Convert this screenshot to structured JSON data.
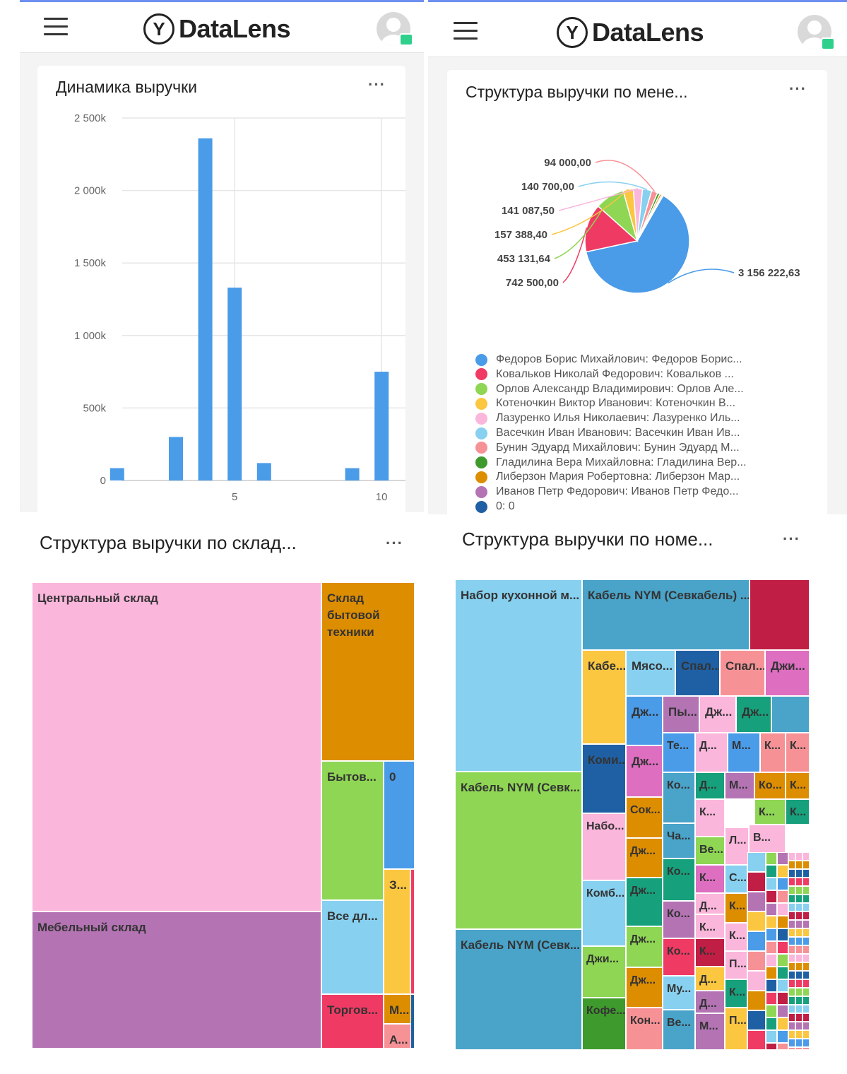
{
  "app": {
    "logo_mark": "Y",
    "logo_text": "DataLens",
    "menu_icon": "hamburger-icon",
    "avatar_icon": "user-avatar-icon"
  },
  "card_bar": {
    "title": "Динамика выручки",
    "more": "···",
    "chart_data": {
      "type": "bar",
      "x": [
        1,
        3,
        4,
        5,
        6,
        9,
        10
      ],
      "values": [
        85000,
        300000,
        2360000,
        1330000,
        120000,
        85000,
        750000
      ],
      "ylim": [
        0,
        2500000
      ],
      "yticks": [
        "0",
        "500k",
        "1 000k",
        "1 500k",
        "2 000k",
        "2 500k"
      ],
      "ytick_values": [
        0,
        500000,
        1000000,
        1500000,
        2000000,
        2500000
      ],
      "xticks": [
        "5",
        "10"
      ],
      "xtick_values": [
        5,
        10
      ],
      "xlim": [
        0.5,
        10.5
      ],
      "grid": true,
      "color": "#4a9be8"
    }
  },
  "card_pie": {
    "title": "Структура выручки по мене...",
    "more": "···",
    "chart_data": {
      "type": "pie",
      "slices": [
        {
          "label": "3 156 222,63",
          "value": 3156222.63,
          "color": "#4a9be8"
        },
        {
          "label": "742 500,00",
          "value": 742500.0,
          "color": "#ef3b64"
        },
        {
          "label": "453 131,64",
          "value": 453131.64,
          "color": "#8ed654"
        },
        {
          "label": "157 388,40",
          "value": 157388.4,
          "color": "#fbc640"
        },
        {
          "label": "141 087,50",
          "value": 141087.5,
          "color": "#fbb6dc"
        },
        {
          "label": "140 700,00",
          "value": 140700.0,
          "color": "#87d0ef"
        },
        {
          "label": "94 000,00",
          "value": 94000.0,
          "color": "#f69296"
        },
        {
          "label": "",
          "value": 40000,
          "color": "#3e9a2c"
        },
        {
          "label": "",
          "value": 30000,
          "color": "#dd8d00"
        },
        {
          "label": "",
          "value": 20000,
          "color": "#b474b4"
        },
        {
          "label": "",
          "value": 5000,
          "color": "#1f60a4"
        }
      ],
      "legend": [
        {
          "text": "Федоров Борис Михайлович: Федоров Борис...",
          "color": "#4a9be8"
        },
        {
          "text": "Ковальков Николай Федорович: Ковальков ...",
          "color": "#ef3b64"
        },
        {
          "text": "Орлов Александр Владимирович: Орлов Але...",
          "color": "#8ed654"
        },
        {
          "text": "Котеночкин Виктор Иванович: Котеночкин В...",
          "color": "#fbc640"
        },
        {
          "text": "Лазуренко Илья Николаевич: Лазуренко Иль...",
          "color": "#fbb6dc"
        },
        {
          "text": "Васечкин Иван Иванович: Васечкин Иван Ив...",
          "color": "#87d0ef"
        },
        {
          "text": "Бунин Эдуард Михайлович: Бунин Эдуард М...",
          "color": "#f69296"
        },
        {
          "text": "Гладилина Вера Михайловна: Гладилина Вер...",
          "color": "#3e9a2c"
        },
        {
          "text": "Либерзон Мария Робертовна: Либерзон Мар...",
          "color": "#dd8d00"
        },
        {
          "text": "Иванов Петр Федорович: Иванов Петр Федо...",
          "color": "#b474b4"
        },
        {
          "text": "0: 0",
          "color": "#1f60a4"
        }
      ]
    }
  },
  "card_tm1": {
    "title": "Структура выручки по склад...",
    "more": "···",
    "chart_data": {
      "type": "treemap",
      "nodes": [
        {
          "label": "Центральный склад",
          "color": "#fbb6dc"
        },
        {
          "label": "Мебельный склад",
          "color": "#b474b4"
        },
        {
          "label": "Склад бытовой техники",
          "color": "#dd8d00"
        },
        {
          "label": "Бытов...",
          "color": "#8ed654"
        },
        {
          "label": "0",
          "color": "#4a9be8"
        },
        {
          "label": "Все дл...",
          "color": "#87d0ef"
        },
        {
          "label": "З...",
          "color": "#fbc640"
        },
        {
          "label": "",
          "color": "#ef3b64"
        },
        {
          "label": "Торгов...",
          "color": "#ef3b64"
        },
        {
          "label": "М...",
          "color": "#dd8d00"
        },
        {
          "label": "А...",
          "color": "#f69296"
        },
        {
          "label": "",
          "color": "#1f60a4"
        }
      ]
    }
  },
  "card_tm2": {
    "title": "Структура выручки по номе...",
    "more": "···",
    "chart_data": {
      "type": "treemap",
      "nodes": [
        {
          "label": "Набор кухонной м...",
          "color": "#87d0ef"
        },
        {
          "label": "Кабель NYM (Севк...",
          "color": "#8ed654"
        },
        {
          "label": "Кабель NYM (Севк...",
          "color": "#4aa3c8"
        },
        {
          "label": "Кабель NYM (Севкабель) ...",
          "color": "#4aa3c8"
        },
        {
          "label": "",
          "color": "#c01e44"
        },
        {
          "label": "Кабе...",
          "color": "#fbc640"
        },
        {
          "label": "Мясо...",
          "color": "#87d0ef"
        },
        {
          "label": "Спал...",
          "color": "#1f60a4"
        },
        {
          "label": "Спал...",
          "color": "#f69296"
        },
        {
          "label": "Джи...",
          "color": "#dd6ec0"
        },
        {
          "label": "Дж...",
          "color": "#4a9be8"
        },
        {
          "label": "Пы...",
          "color": "#b474b4"
        },
        {
          "label": "Дж...",
          "color": "#fbb6dc"
        },
        {
          "label": "Дж...",
          "color": "#17a07c"
        },
        {
          "label": "",
          "color": "#4aa3c8"
        },
        {
          "label": "Коми...",
          "color": "#1f60a4"
        },
        {
          "label": "Дж...",
          "color": "#dd6ec0"
        },
        {
          "label": "Те...",
          "color": "#4a9be8"
        },
        {
          "label": "Д...",
          "color": "#fbb6dc"
        },
        {
          "label": "М...",
          "color": "#4a9be8"
        },
        {
          "label": "К...",
          "color": "#f69296"
        },
        {
          "label": "К...",
          "color": "#f69296"
        },
        {
          "label": "Сок...",
          "color": "#dd8d00"
        },
        {
          "label": "Ко...",
          "color": "#4aa3c8"
        },
        {
          "label": "Д...",
          "color": "#17a07c"
        },
        {
          "label": "М...",
          "color": "#b474b4"
        },
        {
          "label": "Ко...",
          "color": "#dd8d00"
        },
        {
          "label": "К...",
          "color": "#dd8d00"
        },
        {
          "label": "Набо...",
          "color": "#fbb6dc"
        },
        {
          "label": "Ча...",
          "color": "#4aa3c8"
        },
        {
          "label": "К...",
          "color": "#fbb6dc"
        },
        {
          "label": "К...",
          "color": "#8ed654"
        },
        {
          "label": "К...",
          "color": "#17a07c"
        },
        {
          "label": "Дж...",
          "color": "#dd8d00"
        },
        {
          "label": "Ве...",
          "color": "#8ed654"
        },
        {
          "label": "Л...",
          "color": "#fbb6dc"
        },
        {
          "label": "В...",
          "color": "#fbb6dc"
        },
        {
          "label": "Комб...",
          "color": "#87d0ef"
        },
        {
          "label": "Ко...",
          "color": "#17a07c"
        },
        {
          "label": "К...",
          "color": "#dd6ec0"
        },
        {
          "label": "С...",
          "color": "#87d0ef"
        },
        {
          "label": "Дж...",
          "color": "#17a07c"
        },
        {
          "label": "Д...",
          "color": "#fbb6dc"
        },
        {
          "label": "Ко...",
          "color": "#b474b4"
        },
        {
          "label": "К...",
          "color": "#fbb6dc"
        },
        {
          "label": "К...",
          "color": "#dd8d00"
        },
        {
          "label": "Дж...",
          "color": "#8ed654"
        },
        {
          "label": "Ко...",
          "color": "#ef3b64"
        },
        {
          "label": "К...",
          "color": "#c01e44"
        },
        {
          "label": "К...",
          "color": "#fbb6dc"
        },
        {
          "label": "Джи...",
          "color": "#8ed654"
        },
        {
          "label": "Дж...",
          "color": "#dd8d00"
        },
        {
          "label": "Д...",
          "color": "#fbc640"
        },
        {
          "label": "П...",
          "color": "#fbb6dc"
        },
        {
          "label": "Му...",
          "color": "#87d0ef"
        },
        {
          "label": "Д...",
          "color": "#b474b4"
        },
        {
          "label": "К...",
          "color": "#17a07c"
        },
        {
          "label": "Кофе...",
          "color": "#3e9a2c"
        },
        {
          "label": "Кон...",
          "color": "#f69296"
        },
        {
          "label": "Ве...",
          "color": "#4aa3c8"
        },
        {
          "label": "М...",
          "color": "#b474b4"
        },
        {
          "label": "П...",
          "color": "#fbc640"
        }
      ]
    }
  }
}
